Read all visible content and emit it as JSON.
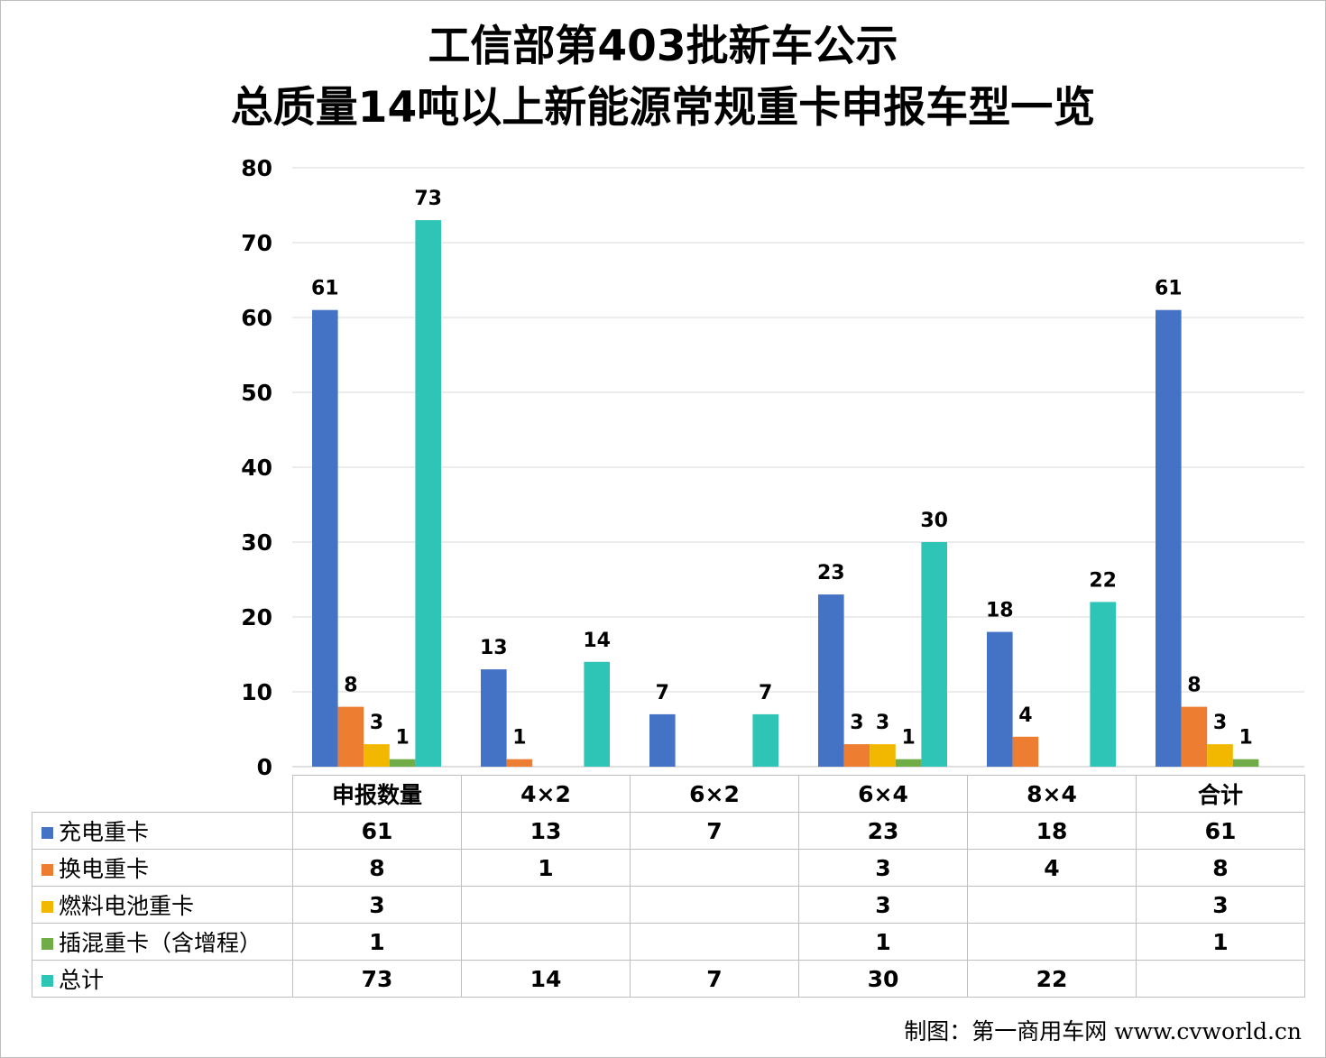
{
  "title": {
    "line1": "工信部第403批新车公示",
    "line2": "总质量14吨以上新能源常规重卡申报车型一览"
  },
  "credit": "制图：第一商用车网 www.cvworld.cn",
  "chart_data": {
    "type": "bar",
    "title": "工信部第403批新车公示 总质量14吨以上新能源常规重卡申报车型一览",
    "categories": [
      "申报数量",
      "4×2",
      "6×2",
      "6×4",
      "8×4",
      "合计"
    ],
    "ylim": [
      0,
      80
    ],
    "yticks": [
      0,
      10,
      20,
      30,
      40,
      50,
      60,
      70,
      80
    ],
    "grid": true,
    "legend": "data-table",
    "series": [
      {
        "name": "充电重卡",
        "color": "#4472c4",
        "values": [
          61,
          13,
          7,
          23,
          18,
          61
        ]
      },
      {
        "name": "换电重卡",
        "color": "#ed7d31",
        "values": [
          8,
          1,
          null,
          3,
          4,
          8
        ]
      },
      {
        "name": "燃料电池重卡",
        "color": "#f2b800",
        "values": [
          3,
          null,
          null,
          3,
          null,
          3
        ]
      },
      {
        "name": "插混重卡（含增程）",
        "color": "#70ad47",
        "values": [
          1,
          null,
          null,
          1,
          null,
          1
        ]
      },
      {
        "name": "总计",
        "color": "#2ec4b6",
        "values": [
          73,
          14,
          7,
          30,
          22,
          null
        ]
      }
    ]
  }
}
